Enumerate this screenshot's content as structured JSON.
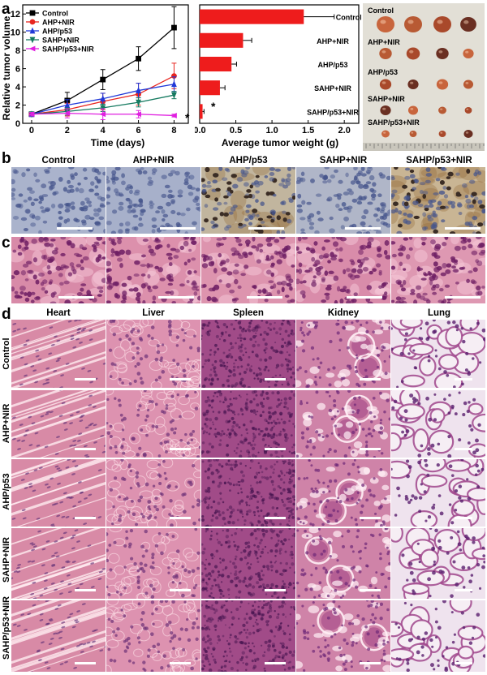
{
  "panels": {
    "a": "a",
    "b": "b",
    "c": "c",
    "d": "d"
  },
  "chart_line": {
    "type": "line",
    "xlabel": "Time (days)",
    "ylabel": "Relative tumor volume",
    "xlim": [
      -0.5,
      8.8
    ],
    "ylim": [
      0,
      13
    ],
    "xticks": [
      0,
      2,
      4,
      6,
      8
    ],
    "yticks": [
      0,
      2,
      4,
      6,
      8,
      10,
      12
    ],
    "x": [
      0,
      2,
      4,
      6,
      8
    ],
    "legend_position": "top-left",
    "series": [
      {
        "name": "Control",
        "color": "#000000",
        "marker": "square",
        "values": [
          1,
          2.5,
          4.8,
          7.1,
          10.5
        ],
        "err": [
          0.2,
          0.9,
          1.1,
          1.3,
          2.3
        ]
      },
      {
        "name": "AHP+NIR",
        "color": "#e8251f",
        "marker": "circle",
        "values": [
          1,
          1.5,
          2.4,
          3.2,
          5.2
        ],
        "err": [
          0.2,
          0.7,
          0.9,
          1.2,
          1.4
        ]
      },
      {
        "name": "AHP/p53",
        "color": "#2139d8",
        "marker": "triangle-up",
        "values": [
          1,
          2.0,
          2.7,
          3.6,
          4.3
        ],
        "err": [
          0.2,
          0.6,
          0.6,
          0.8,
          0.8
        ]
      },
      {
        "name": "SAHP+NIR",
        "color": "#157a60",
        "marker": "triangle-down",
        "values": [
          1,
          1.3,
          1.7,
          2.3,
          3.1
        ],
        "err": [
          0.2,
          0.4,
          0.4,
          0.5,
          0.4
        ]
      },
      {
        "name": "SAHP/p53+NIR",
        "color": "#e020e0",
        "marker": "triangle-left",
        "values": [
          1,
          1.1,
          1.0,
          1.0,
          0.85
        ],
        "err": [
          0.2,
          0.5,
          0.6,
          0.4,
          0.15
        ]
      }
    ],
    "annotation": "*"
  },
  "chart_bar": {
    "type": "bar",
    "orientation": "horizontal",
    "xlabel": "Average tumor weight (g)",
    "xlim": [
      0,
      2.2
    ],
    "xticks": [
      0.0,
      0.5,
      1.0,
      1.5,
      2.0
    ],
    "xtick_labels": [
      "0.0",
      "0.5",
      "1.0",
      "1.5",
      "2.0"
    ],
    "categories": [
      "Control",
      "AHP+NIR",
      "AHP/p53",
      "SAHP+NIR",
      "SAHP/p53+NIR"
    ],
    "values": [
      1.44,
      0.6,
      0.44,
      0.28,
      0.04
    ],
    "err": [
      0.42,
      0.12,
      0.07,
      0.07,
      0.02
    ],
    "color": "#ee1c1c",
    "annotation": "*"
  },
  "tumor_photo": {
    "labels": [
      "Control",
      "AHP+NIR",
      "AHP/p53",
      "SAHP+NIR",
      "SAHP/p53+NIR"
    ]
  },
  "groups": [
    "Control",
    "AHP+NIR",
    "AHP/p53",
    "SAHP+NIR",
    "SAHP/p53+NIR"
  ],
  "organs": [
    "Heart",
    "Liver",
    "Spleen",
    "Kidney",
    "Lung"
  ],
  "colors": {
    "ihc_blue": "#a9b3cd",
    "ihc_brown": "#c7b08c",
    "he_pink": "#d78aa8",
    "he_dark": "#8a3f78",
    "lung_bg": "#efe3ee"
  }
}
